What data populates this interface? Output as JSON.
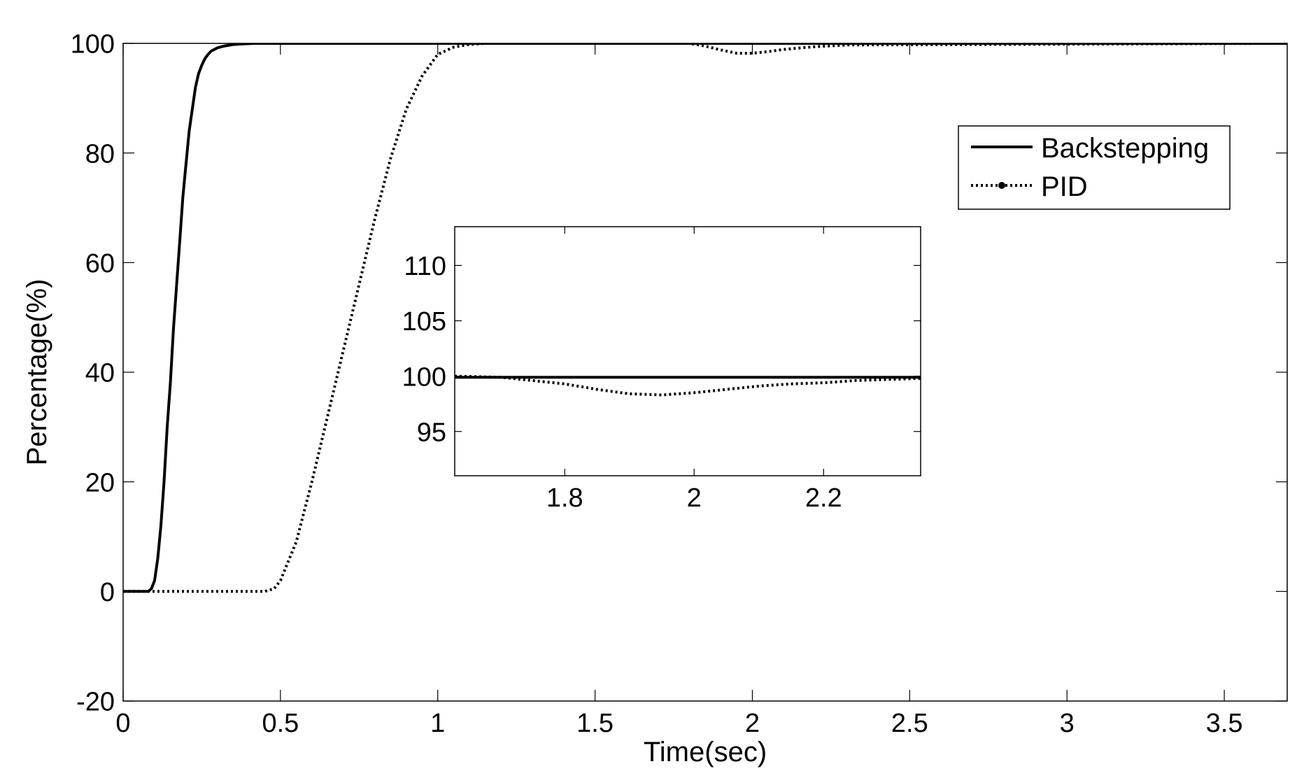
{
  "chart_data": [
    {
      "type": "line",
      "title": "",
      "xlabel": "Time(sec)",
      "ylabel": "Percentage(%)",
      "xlim": [
        0,
        3.7
      ],
      "ylim": [
        -20,
        100
      ],
      "xticks": [
        0,
        0.5,
        1,
        1.5,
        2,
        2.5,
        3,
        3.5
      ],
      "xtick_labels": [
        "0",
        "0.5",
        "1",
        "1.5",
        "2",
        "2.5",
        "3",
        "3.5"
      ],
      "yticks": [
        -20,
        0,
        20,
        40,
        60,
        80,
        100
      ],
      "ytick_labels": [
        "-20",
        "0",
        "20",
        "40",
        "60",
        "80",
        "100"
      ],
      "grid": false,
      "legend": "top-right",
      "series": [
        {
          "name": "Backstepping",
          "style": "solid",
          "color": "#000000",
          "x": [
            0,
            0.06,
            0.08,
            0.09,
            0.1,
            0.11,
            0.12,
            0.13,
            0.14,
            0.15,
            0.16,
            0.17,
            0.18,
            0.19,
            0.2,
            0.21,
            0.22,
            0.23,
            0.24,
            0.25,
            0.26,
            0.27,
            0.28,
            0.3,
            0.32,
            0.35,
            0.38,
            0.42,
            3.7
          ],
          "y": [
            0,
            0,
            0,
            0.5,
            2,
            6,
            12,
            20,
            30,
            38,
            48,
            56,
            64,
            72,
            78,
            84,
            88,
            92,
            94.5,
            96,
            97.2,
            98,
            98.6,
            99.2,
            99.5,
            99.8,
            99.9,
            100,
            100
          ]
        },
        {
          "name": "PID",
          "style": "dotted",
          "color": "#000000",
          "x": [
            0,
            0.2,
            0.3,
            0.4,
            0.45,
            0.48,
            0.5,
            0.55,
            0.6,
            0.65,
            0.7,
            0.75,
            0.8,
            0.85,
            0.9,
            0.95,
            1.0,
            1.05,
            1.08,
            1.1,
            1.15,
            1.5,
            1.8,
            1.85,
            1.9,
            1.95,
            2.0,
            2.05,
            2.1,
            2.2,
            2.3,
            3.7
          ],
          "y": [
            0,
            0,
            0,
            0,
            0,
            0.5,
            2,
            9,
            20,
            32,
            44,
            56,
            68,
            79,
            88,
            94,
            98,
            99.3,
            99.6,
            99.8,
            100,
            100,
            100,
            99.5,
            98.8,
            98.2,
            98.2,
            98.5,
            98.9,
            99.4,
            99.7,
            100
          ]
        }
      ]
    },
    {
      "type": "line",
      "title": "",
      "xlabel": "",
      "ylabel": "",
      "xlim": [
        1.63,
        2.35
      ],
      "ylim": [
        91,
        113.5
      ],
      "xticks": [
        1.8,
        2,
        2.2
      ],
      "xtick_labels": [
        "1.8",
        "2",
        "2.2"
      ],
      "yticks": [
        95,
        100,
        105,
        110
      ],
      "ytick_labels": [
        "95",
        "100",
        "105",
        "110"
      ],
      "grid": false,
      "series": [
        {
          "name": "Backstepping",
          "style": "solid",
          "color": "#000000",
          "x": [
            1.63,
            2.35
          ],
          "y": [
            99.9,
            99.9
          ]
        },
        {
          "name": "PID",
          "style": "dotted",
          "color": "#000000",
          "x": [
            1.63,
            1.7,
            1.75,
            1.8,
            1.85,
            1.9,
            1.95,
            2.0,
            2.05,
            2.1,
            2.15,
            2.2,
            2.25,
            2.3,
            2.35
          ],
          "y": [
            100.0,
            99.9,
            99.6,
            99.3,
            98.8,
            98.4,
            98.3,
            98.5,
            98.8,
            99.1,
            99.3,
            99.4,
            99.6,
            99.7,
            99.8
          ]
        }
      ]
    }
  ],
  "legend": {
    "entries": [
      "Backstepping",
      "PID"
    ]
  }
}
